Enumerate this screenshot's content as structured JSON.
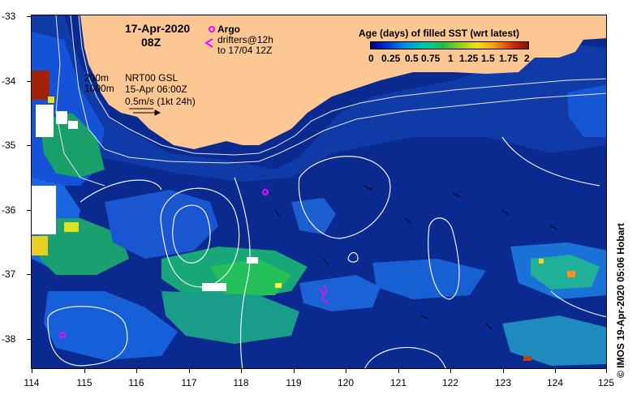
{
  "header": {
    "date": "17-Apr-2020",
    "time": "08Z"
  },
  "argo": {
    "label": "Argo",
    "drifters_line1": "drifters@12h",
    "drifters_line2": "to 17/04 12Z"
  },
  "contours": {
    "label_200": "200m",
    "label_1000": "1000m"
  },
  "gsl_info": {
    "line1": "NRT00 GSL",
    "line2": "15-Apr 06:00Z",
    "line3": "0.5m/s (1kt 24h)"
  },
  "legend": {
    "title": "Age (days) of filled SST (wrt latest)",
    "ticks": [
      "0",
      "0.25",
      "0.5",
      "0.75",
      "1",
      "1.25",
      "1.5",
      "1.75",
      "2"
    ]
  },
  "axes": {
    "lat_labels": [
      "-33",
      "-34",
      "-35",
      "-36",
      "-37",
      "-38"
    ],
    "lon_labels": [
      "114",
      "115",
      "116",
      "117",
      "118",
      "119",
      "120",
      "121",
      "122",
      "123",
      "124",
      "125"
    ],
    "lon_range": [
      114,
      125
    ],
    "lat_range": [
      -38.5,
      -33
    ]
  },
  "credit": "© IMOS 19-Apr-2020 05:06 Hobart",
  "colors": {
    "ocean_deep": "#0a2a90",
    "ocean_mid": "#1446c8",
    "land": "#fcc793",
    "argo": "#ff00ff"
  }
}
